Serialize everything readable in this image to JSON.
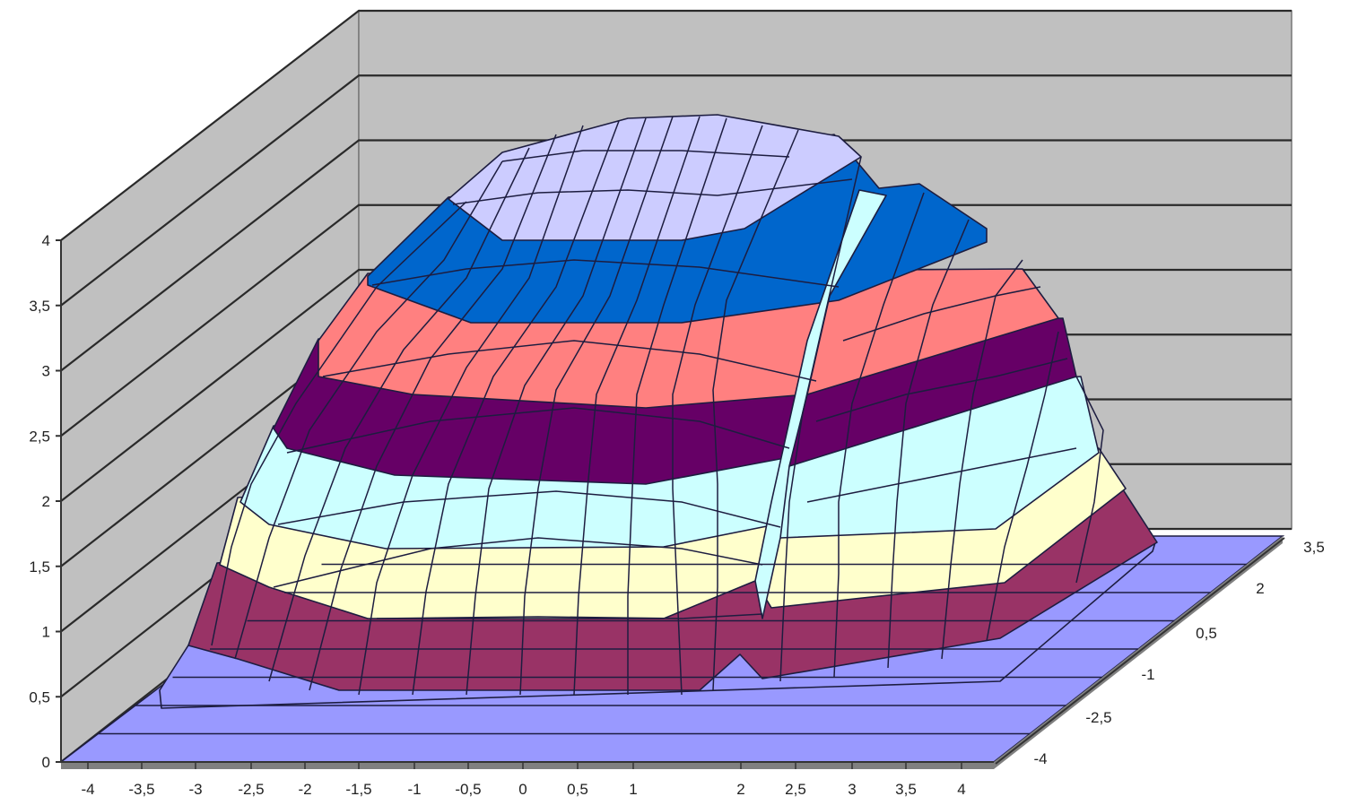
{
  "chart_data": {
    "type": "surface",
    "title": "",
    "xlabel": "",
    "ylabel": "",
    "zlabel": "",
    "x_ticks": [
      "-4",
      "-3,5",
      "-3",
      "-2,5",
      "-2",
      "-1,5",
      "-1",
      "-0,5",
      "0",
      "0,5",
      "1",
      "2",
      "2,5",
      "3",
      "3,5",
      "4"
    ],
    "y_ticks": [
      "-4",
      "-2,5",
      "-1",
      "0,5",
      "2",
      "3,5"
    ],
    "z_ticks": [
      "0",
      "0,5",
      "1",
      "1,5",
      "2",
      "2,5",
      "3",
      "3,5",
      "4"
    ],
    "zlim": [
      0,
      4
    ],
    "grid": true,
    "legend": "none",
    "bands": [
      {
        "range": [
          0,
          0.5
        ],
        "color": "#9999ff"
      },
      {
        "range": [
          0.5,
          1
        ],
        "color": "#993366"
      },
      {
        "range": [
          1,
          1.5
        ],
        "color": "#ffffcc"
      },
      {
        "range": [
          1.5,
          2
        ],
        "color": "#ccffff"
      },
      {
        "range": [
          2,
          2.5
        ],
        "color": "#660066"
      },
      {
        "range": [
          2.5,
          3
        ],
        "color": "#ff8080"
      },
      {
        "range": [
          3,
          3.5
        ],
        "color": "#0066cc"
      },
      {
        "range": [
          3.5,
          4
        ],
        "color": "#ccccff"
      }
    ],
    "wall_color": "#c0c0c0",
    "floor_color": "#9999ff"
  }
}
